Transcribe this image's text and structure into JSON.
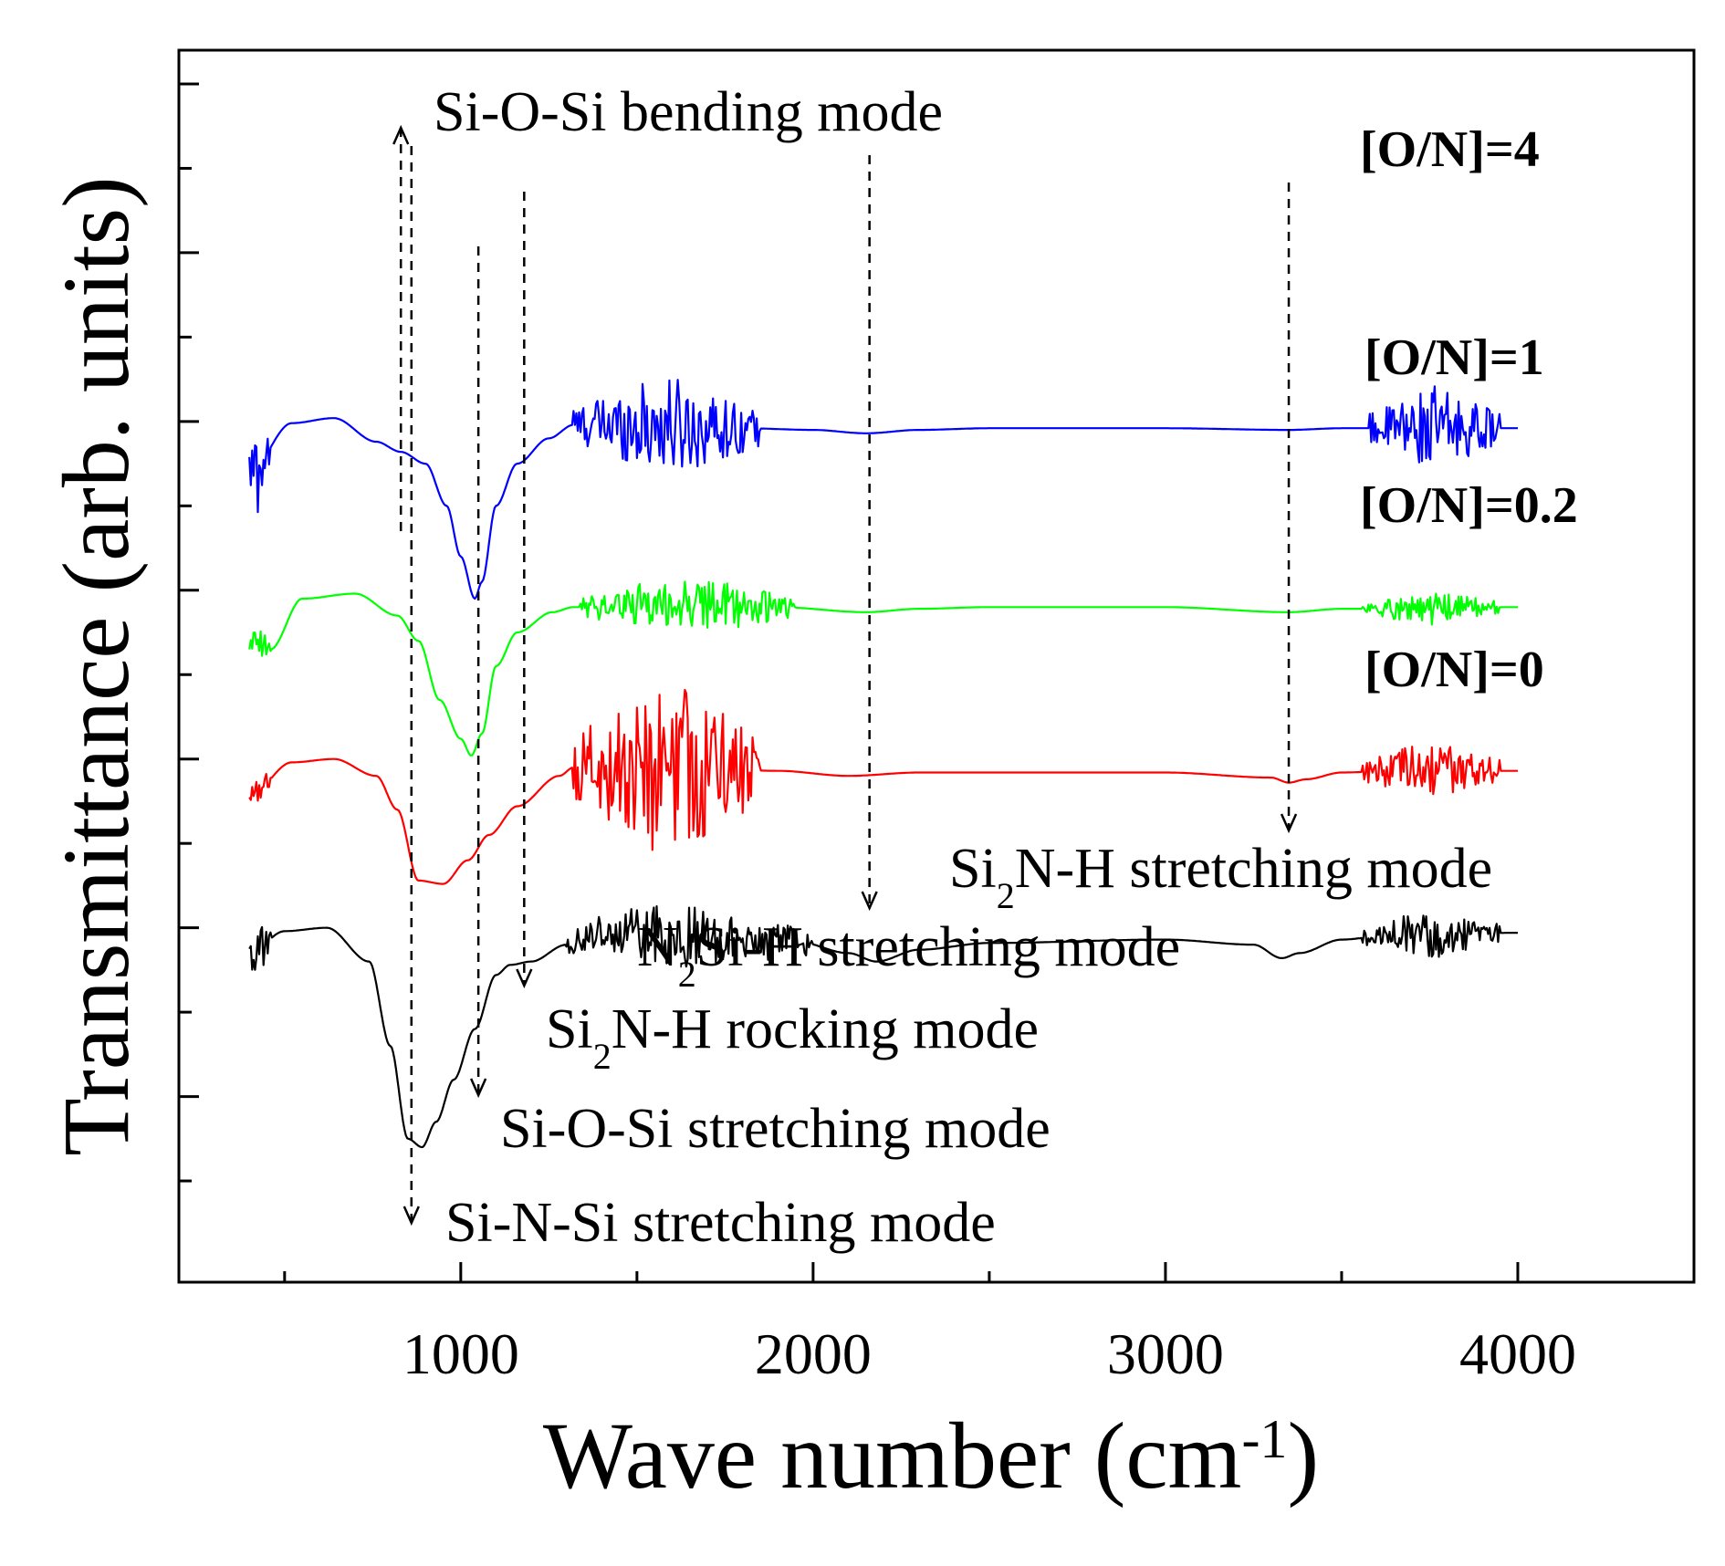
{
  "chart_data": {
    "type": "line",
    "title": "",
    "xlabel": "Wave number (cm",
    "xlabel_sup": "-1",
    "xlabel_close": ")",
    "ylabel": "Transmittance (arb. units)",
    "xlim": [
      200,
      4500
    ],
    "ylim": [
      -1.1,
      6.2
    ],
    "x_ticks": [
      1000,
      2000,
      3000,
      4000
    ],
    "x_tick_labels": [
      "1000",
      "2000",
      "3000",
      "4000"
    ],
    "x_minor_ticks": [
      500,
      1500,
      2500,
      3500
    ],
    "y_ticks": [
      -0.5,
      0,
      0.5,
      1,
      1.5,
      2,
      2.5,
      3,
      3.5,
      4,
      4.5,
      5,
      5.5,
      6
    ],
    "y_tick_labels_shown": false,
    "series": [
      {
        "name": "[O/N]=4",
        "color": "#0000ff",
        "offset": 4.0,
        "anchors": [
          [
            400,
            3.7
          ],
          [
            520,
            3.99
          ],
          [
            640,
            4.02
          ],
          [
            760,
            3.88
          ],
          [
            830,
            3.82
          ],
          [
            900,
            3.75
          ],
          [
            960,
            3.5
          ],
          [
            1000,
            3.2
          ],
          [
            1040,
            2.95
          ],
          [
            1060,
            3.05
          ],
          [
            1100,
            3.5
          ],
          [
            1160,
            3.75
          ],
          [
            1250,
            3.9
          ],
          [
            1320,
            3.98
          ],
          [
            1500,
            3.98
          ],
          [
            1800,
            3.96
          ],
          [
            2000,
            3.95
          ],
          [
            2150,
            3.93
          ],
          [
            2300,
            3.95
          ],
          [
            2500,
            3.96
          ],
          [
            3000,
            3.96
          ],
          [
            3350,
            3.95
          ],
          [
            3500,
            3.96
          ],
          [
            3650,
            3.96
          ],
          [
            4000,
            3.96
          ]
        ],
        "noise": [
          [
            400,
            460,
            0.35
          ],
          [
            1320,
            1850,
            0.3
          ],
          [
            3580,
            3950,
            0.25
          ]
        ]
      },
      {
        "name": "[O/N]=1",
        "color": "#00ff00",
        "offset": 2.9,
        "anchors": [
          [
            400,
            2.68
          ],
          [
            460,
            2.65
          ],
          [
            550,
            2.95
          ],
          [
            700,
            2.98
          ],
          [
            820,
            2.85
          ],
          [
            880,
            2.7
          ],
          [
            940,
            2.35
          ],
          [
            1000,
            2.12
          ],
          [
            1030,
            2.02
          ],
          [
            1060,
            2.15
          ],
          [
            1100,
            2.55
          ],
          [
            1160,
            2.75
          ],
          [
            1260,
            2.87
          ],
          [
            1320,
            2.9
          ],
          [
            1600,
            2.92
          ],
          [
            1900,
            2.9
          ],
          [
            2150,
            2.87
          ],
          [
            2300,
            2.89
          ],
          [
            2500,
            2.9
          ],
          [
            3000,
            2.9
          ],
          [
            3350,
            2.87
          ],
          [
            3500,
            2.89
          ],
          [
            4000,
            2.9
          ]
        ],
        "noise": [
          [
            400,
            460,
            0.12
          ],
          [
            1340,
            1950,
            0.18
          ],
          [
            3560,
            3950,
            0.1
          ]
        ]
      },
      {
        "name": "[O/N]=0.2",
        "color": "#ff0000",
        "offset": 1.9,
        "anchors": [
          [
            400,
            1.78
          ],
          [
            520,
            1.98
          ],
          [
            640,
            2.0
          ],
          [
            760,
            1.9
          ],
          [
            820,
            1.7
          ],
          [
            880,
            1.28
          ],
          [
            950,
            1.26
          ],
          [
            1020,
            1.4
          ],
          [
            1080,
            1.55
          ],
          [
            1160,
            1.72
          ],
          [
            1280,
            1.9
          ],
          [
            1320,
            1.95
          ],
          [
            1600,
            1.95
          ],
          [
            1900,
            1.93
          ],
          [
            2100,
            1.9
          ],
          [
            2300,
            1.92
          ],
          [
            2600,
            1.92
          ],
          [
            3000,
            1.92
          ],
          [
            3300,
            1.89
          ],
          [
            3350,
            1.86
          ],
          [
            3400,
            1.88
          ],
          [
            3500,
            1.92
          ],
          [
            3650,
            1.93
          ],
          [
            4000,
            1.93
          ]
        ],
        "noise": [
          [
            400,
            460,
            0.1
          ],
          [
            1320,
            1850,
            0.55
          ],
          [
            3560,
            3950,
            0.18
          ]
        ]
      },
      {
        "name": "[O/N]=0",
        "color": "#000000",
        "offset": 0.9,
        "anchors": [
          [
            400,
            0.85
          ],
          [
            500,
            0.98
          ],
          [
            620,
            1.0
          ],
          [
            740,
            0.8
          ],
          [
            800,
            0.3
          ],
          [
            850,
            -0.25
          ],
          [
            890,
            -0.3
          ],
          [
            930,
            -0.15
          ],
          [
            980,
            0.1
          ],
          [
            1040,
            0.4
          ],
          [
            1100,
            0.72
          ],
          [
            1140,
            0.78
          ],
          [
            1200,
            0.8
          ],
          [
            1300,
            0.9
          ],
          [
            1400,
            0.98
          ],
          [
            1700,
            0.95
          ],
          [
            1950,
            0.92
          ],
          [
            2100,
            0.85
          ],
          [
            2180,
            0.8
          ],
          [
            2300,
            0.87
          ],
          [
            2500,
            0.91
          ],
          [
            3000,
            0.93
          ],
          [
            3250,
            0.9
          ],
          [
            3330,
            0.82
          ],
          [
            3380,
            0.85
          ],
          [
            3500,
            0.93
          ],
          [
            3650,
            0.96
          ],
          [
            4000,
            0.97
          ]
        ],
        "noise": [
          [
            400,
            460,
            0.2
          ],
          [
            1300,
            2000,
            0.2
          ],
          [
            3560,
            3950,
            0.15
          ]
        ]
      }
    ],
    "legend_labels": [
      "[O/N]=4",
      "[O/N]=1",
      "[O/N]=0.2",
      "[O/N]=0"
    ],
    "annotations": [
      {
        "text": "Si-O-Si bending mode",
        "x": 830
      },
      {
        "text_main": "Si",
        "sub": "2",
        "text_rest": "N-H stretching mode",
        "x": 3350
      },
      {
        "text_main": "N",
        "sub": "2",
        "text_rest": "Si-H stretching mode",
        "x": 2160
      },
      {
        "text_main": "Si",
        "sub": "2",
        "text_rest": "N-H rocking mode",
        "x": 1180
      },
      {
        "text": "Si-O-Si stretching mode",
        "x": 1050
      },
      {
        "text": "Si-N-Si stretching mode",
        "x": 850
      }
    ]
  }
}
